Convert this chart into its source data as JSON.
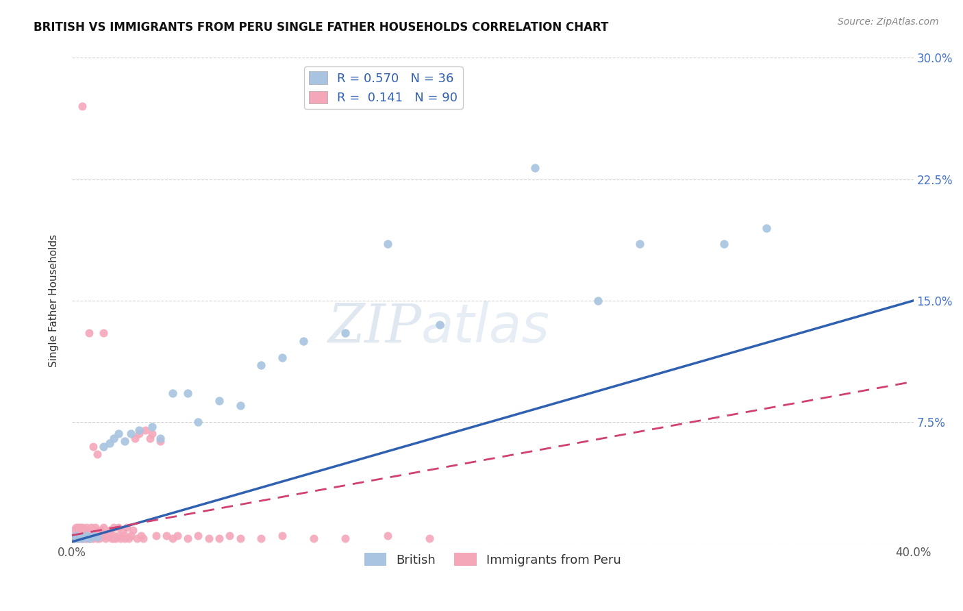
{
  "title": "BRITISH VS IMMIGRANTS FROM PERU SINGLE FATHER HOUSEHOLDS CORRELATION CHART",
  "source": "Source: ZipAtlas.com",
  "ylabel": "Single Father Households",
  "xlim": [
    0.0,
    0.4
  ],
  "ylim": [
    0.0,
    0.3
  ],
  "british_color": "#a8c4e0",
  "peru_color": "#f4a7b9",
  "british_line_color": "#3060b0",
  "peru_line_color": "#d04070",
  "legend_R_british": "0.570",
  "legend_N_british": "36",
  "legend_R_peru": "0.141",
  "legend_N_peru": "90",
  "brit_line_x0": 0.0,
  "brit_line_y0": 0.001,
  "brit_line_x1": 0.4,
  "brit_line_y1": 0.15,
  "peru_line_x0": 0.0,
  "peru_line_y0": 0.005,
  "peru_line_x1": 0.4,
  "peru_line_y1": 0.1,
  "british_x": [
    0.001,
    0.002,
    0.003,
    0.004,
    0.005,
    0.006,
    0.007,
    0.008,
    0.009,
    0.01,
    0.012,
    0.015,
    0.018,
    0.02,
    0.022,
    0.025,
    0.028,
    0.032,
    0.038,
    0.042,
    0.048,
    0.055,
    0.06,
    0.07,
    0.08,
    0.09,
    0.1,
    0.11,
    0.13,
    0.15,
    0.175,
    0.22,
    0.25,
    0.27,
    0.31,
    0.33
  ],
  "british_y": [
    0.003,
    0.005,
    0.003,
    0.004,
    0.003,
    0.004,
    0.005,
    0.003,
    0.004,
    0.005,
    0.004,
    0.06,
    0.062,
    0.065,
    0.068,
    0.063,
    0.068,
    0.07,
    0.072,
    0.065,
    0.093,
    0.093,
    0.075,
    0.088,
    0.085,
    0.11,
    0.115,
    0.125,
    0.13,
    0.185,
    0.135,
    0.232,
    0.15,
    0.185,
    0.185,
    0.195
  ],
  "peru_x": [
    0.001,
    0.001,
    0.002,
    0.002,
    0.002,
    0.003,
    0.003,
    0.003,
    0.003,
    0.004,
    0.004,
    0.004,
    0.005,
    0.005,
    0.005,
    0.005,
    0.006,
    0.006,
    0.006,
    0.007,
    0.007,
    0.007,
    0.008,
    0.008,
    0.008,
    0.009,
    0.009,
    0.01,
    0.01,
    0.01,
    0.011,
    0.011,
    0.012,
    0.012,
    0.013,
    0.013,
    0.014,
    0.015,
    0.015,
    0.016,
    0.017,
    0.018,
    0.019,
    0.02,
    0.02,
    0.021,
    0.022,
    0.022,
    0.023,
    0.024,
    0.025,
    0.026,
    0.027,
    0.028,
    0.029,
    0.03,
    0.031,
    0.032,
    0.033,
    0.034,
    0.035,
    0.037,
    0.038,
    0.04,
    0.042,
    0.045,
    0.048,
    0.05,
    0.055,
    0.06,
    0.065,
    0.07,
    0.075,
    0.08,
    0.09,
    0.1,
    0.115,
    0.13,
    0.15,
    0.17,
    0.005,
    0.008,
    0.01,
    0.012,
    0.015,
    0.018,
    0.02,
    0.025,
    0.007,
    0.009
  ],
  "peru_y": [
    0.003,
    0.008,
    0.005,
    0.01,
    0.003,
    0.004,
    0.008,
    0.01,
    0.003,
    0.005,
    0.01,
    0.003,
    0.005,
    0.008,
    0.01,
    0.003,
    0.005,
    0.008,
    0.003,
    0.005,
    0.01,
    0.003,
    0.005,
    0.008,
    0.003,
    0.005,
    0.01,
    0.005,
    0.008,
    0.003,
    0.005,
    0.01,
    0.003,
    0.008,
    0.005,
    0.003,
    0.008,
    0.005,
    0.01,
    0.003,
    0.005,
    0.008,
    0.003,
    0.005,
    0.01,
    0.003,
    0.005,
    0.01,
    0.003,
    0.008,
    0.005,
    0.01,
    0.003,
    0.005,
    0.008,
    0.065,
    0.003,
    0.068,
    0.005,
    0.003,
    0.07,
    0.065,
    0.068,
    0.005,
    0.063,
    0.005,
    0.003,
    0.005,
    0.003,
    0.005,
    0.003,
    0.003,
    0.005,
    0.003,
    0.003,
    0.005,
    0.003,
    0.003,
    0.005,
    0.003,
    0.27,
    0.13,
    0.06,
    0.055,
    0.13,
    0.005,
    0.003,
    0.003,
    0.003,
    0.003
  ]
}
